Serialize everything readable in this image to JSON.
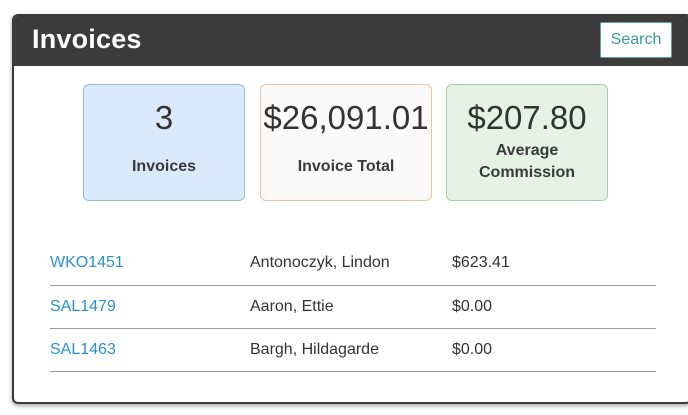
{
  "panel": {
    "title": "Invoices",
    "search_label": "Search"
  },
  "stats": {
    "count": {
      "value": "3",
      "label": "Invoices"
    },
    "total": {
      "value": "$26,091.01",
      "label": "Invoice Total"
    },
    "commission": {
      "value": "$207.80",
      "label_line1": "Average",
      "label_line2": "Commission"
    }
  },
  "invoices": [
    {
      "id": "WKO1451",
      "name": "Antonoczyk, Lindon",
      "amount": "$623.41"
    },
    {
      "id": "SAL1479",
      "name": "Aaron, Ettie",
      "amount": "$0.00"
    },
    {
      "id": "SAL1463",
      "name": "Bargh, Hildagarde",
      "amount": "$0.00"
    }
  ],
  "colors": {
    "header_bg": "#3b3b3b",
    "link": "#2a8fd8",
    "search_accent": "#3b9a94",
    "card_count_bg": "#daeafa",
    "card_total_bg": "#fafafa",
    "card_commission_bg": "#e6f2e6"
  }
}
